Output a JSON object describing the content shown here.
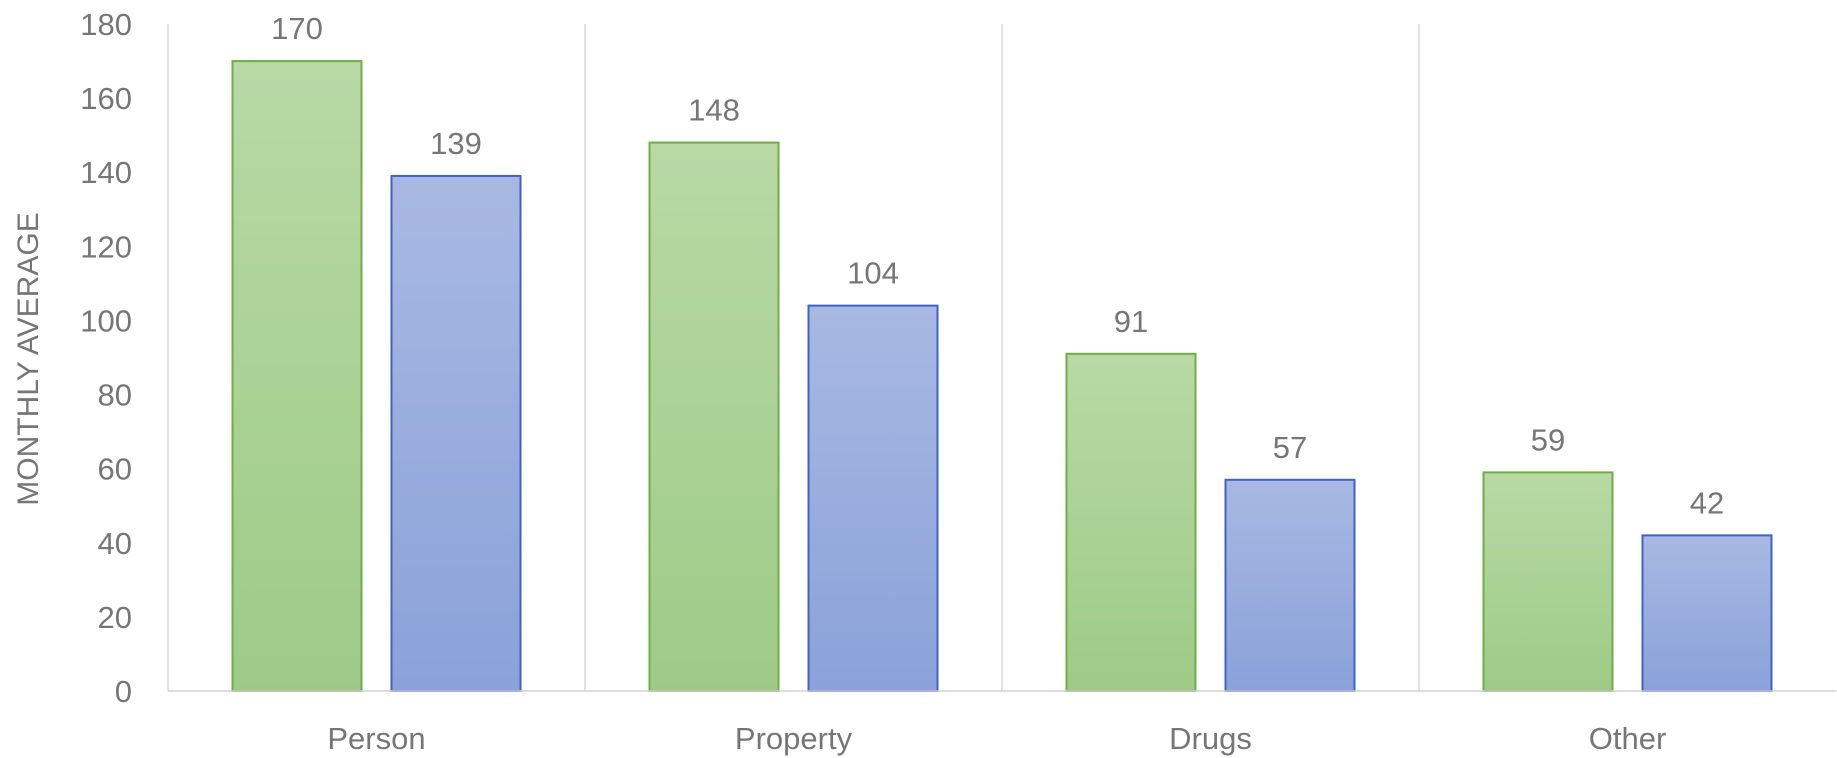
{
  "chart_data": {
    "type": "bar",
    "categories": [
      "Person",
      "Property",
      "Drugs",
      "Other"
    ],
    "series": [
      {
        "values": [
          170,
          148,
          91,
          59
        ],
        "color": "#9dcb87",
        "color_light": "#b8d9a5",
        "border": "#70ad47"
      },
      {
        "values": [
          139,
          104,
          57,
          42
        ],
        "color": "#8aa2d9",
        "color_light": "#a8b8e2",
        "border": "#3f63c4"
      }
    ],
    "title": "",
    "xlabel": "",
    "ylabel": "MONTHLY AVERAGE",
    "ylim": [
      0,
      180
    ],
    "yticks": [
      0,
      20,
      40,
      60,
      80,
      100,
      120,
      140,
      160,
      180
    ],
    "grid": false,
    "category_separators": true,
    "data_labels": true,
    "legend": "none"
  }
}
